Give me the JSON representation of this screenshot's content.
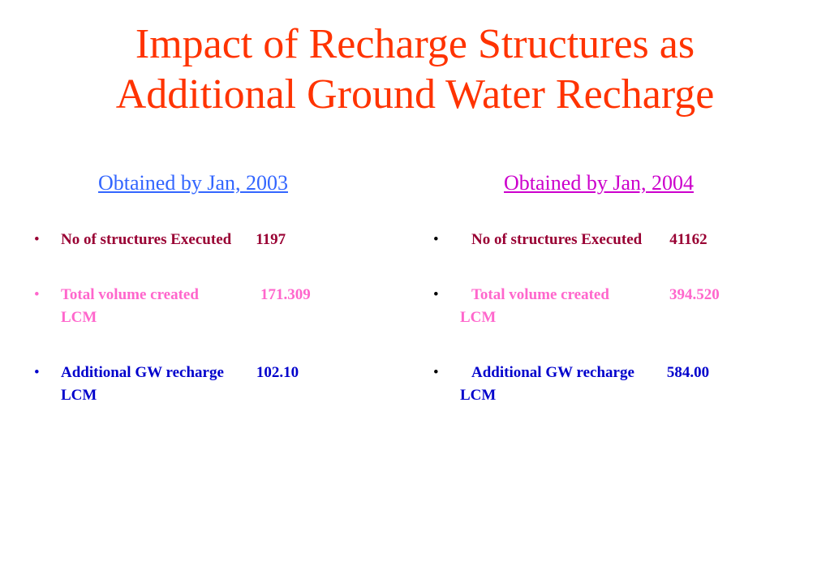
{
  "slide": {
    "title_line1": "Impact of Recharge Structures as",
    "title_line2": "Additional Ground Water Recharge",
    "colors": {
      "title": "#ff3300",
      "heading_2003": "#3366ff",
      "heading_2004": "#cc00cc",
      "structures": "#990033",
      "volume": "#ff66cc",
      "recharge": "#0000cc"
    }
  },
  "left": {
    "heading": "Obtained by Jan, 2003",
    "items": [
      {
        "bullet": "•",
        "label": "No of structures Executed",
        "value": "1197",
        "unit": ""
      },
      {
        "bullet": "•",
        "label": "Total volume created",
        "value": "171.309",
        "unit": "LCM"
      },
      {
        "bullet": "•",
        "label": "Additional GW recharge",
        "value": "102.10",
        "unit": "LCM"
      }
    ]
  },
  "right": {
    "heading": "Obtained by Jan, 2004",
    "items": [
      {
        "bullet": "•",
        "label": "No of structures Executed",
        "value": "41162",
        "unit": ""
      },
      {
        "bullet": "•",
        "label": "Total volume created",
        "value": "394.520",
        "unit": "LCM"
      },
      {
        "bullet": "•",
        "label": "Additional GW recharge",
        "value": "584.00",
        "unit": "LCM"
      }
    ]
  }
}
